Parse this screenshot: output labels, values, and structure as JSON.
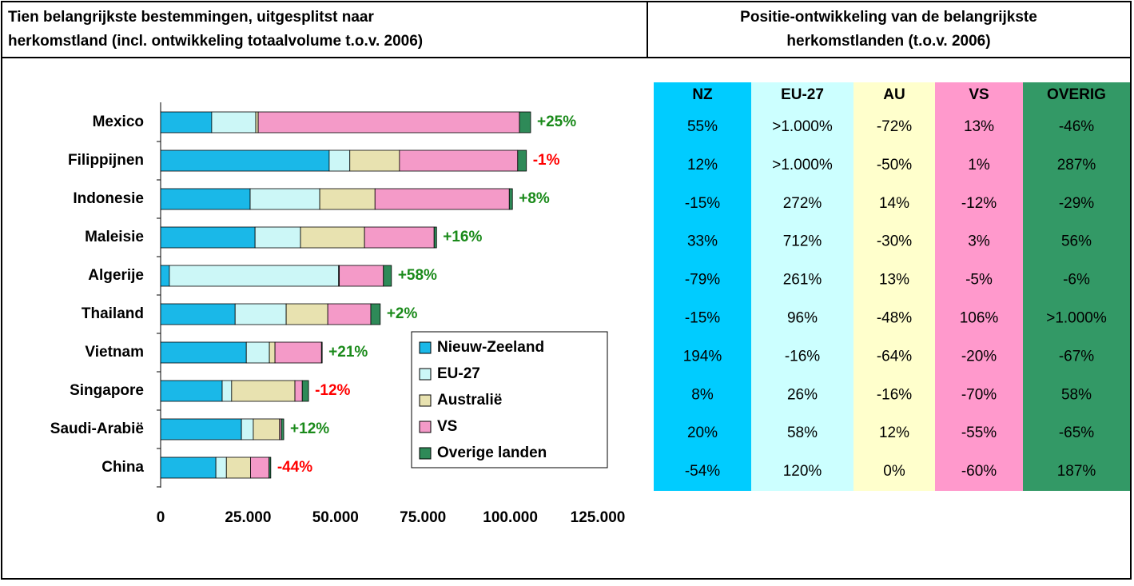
{
  "left_title_lines": [
    "Tien belangrijkste bestemmingen, uitgesplitst naar",
    "herkomstland (incl. ontwikkeling totaalvolume t.o.v. 2006)"
  ],
  "right_title_lines": [
    "Positie-ontwikkeling van de belangrijkste",
    "herkomstlanden (t.o.v. 2006)"
  ],
  "chart_data": {
    "type": "bar",
    "orientation": "horizontal",
    "stacked": true,
    "categories": [
      "Mexico",
      "Filippijnen",
      "Indonesie",
      "Maleisie",
      "Algerije",
      "Thailand",
      "Vietnam",
      "Singapore",
      "Saudi-Arabië",
      "China"
    ],
    "series": [
      {
        "name": "Nieuw-Zeeland",
        "color": "#1ab8e8",
        "values": [
          14600,
          48200,
          25600,
          27000,
          2500,
          21300,
          24500,
          17600,
          23100,
          15800
        ]
      },
      {
        "name": "EU-27",
        "color": "#ccf7f7",
        "values": [
          12600,
          5900,
          19900,
          13000,
          48400,
          14600,
          6600,
          2700,
          3400,
          3000
        ]
      },
      {
        "name": "Australië",
        "color": "#e8e2b0",
        "values": [
          700,
          14200,
          15800,
          18300,
          200,
          11900,
          1600,
          18100,
          7500,
          6900
        ]
      },
      {
        "name": "VS",
        "color": "#f49ac8",
        "values": [
          74700,
          33800,
          38400,
          19900,
          12600,
          12300,
          13300,
          2100,
          500,
          5300
        ]
      },
      {
        "name": "Overige landen",
        "color": "#2e8a58",
        "values": [
          3200,
          2500,
          900,
          700,
          2300,
          2700,
          200,
          1800,
          700,
          500
        ]
      }
    ],
    "annotations": [
      "+25%",
      "-1%",
      "+8%",
      "+16%",
      "+58%",
      "+2%",
      "+21%",
      "-12%",
      "+12%",
      "-44%"
    ],
    "xlim": [
      0,
      125000
    ],
    "xticks": [
      0,
      {
        "value": 25000,
        "label": "25.000"
      },
      {
        "value": 50000,
        "label": "50.000"
      },
      {
        "value": 75000,
        "label": "75.000"
      },
      {
        "value": 100000,
        "label": "100.000"
      },
      {
        "value": 125000,
        "label": "125.000"
      }
    ],
    "legend": "lower-right"
  },
  "table": {
    "header": [
      "NZ",
      "EU-27",
      "AU",
      "VS",
      "OVERIG"
    ],
    "column_colors": [
      "#00ccff",
      "#ccffff",
      "#ffffcc",
      "#ff99cc",
      "#339966"
    ],
    "rows": [
      [
        "55%",
        ">1.000%",
        "-72%",
        "13%",
        "-46%"
      ],
      [
        "12%",
        ">1.000%",
        "-50%",
        "1%",
        "287%"
      ],
      [
        "-15%",
        "272%",
        "14%",
        "-12%",
        "-29%"
      ],
      [
        "33%",
        "712%",
        "-30%",
        "3%",
        "56%"
      ],
      [
        "-79%",
        "261%",
        "13%",
        "-5%",
        "-6%"
      ],
      [
        "-15%",
        "96%",
        "-48%",
        "106%",
        ">1.000%"
      ],
      [
        "194%",
        "-16%",
        "-64%",
        "-20%",
        "-67%"
      ],
      [
        "8%",
        "26%",
        "-16%",
        "-70%",
        "58%"
      ],
      [
        "20%",
        "58%",
        "12%",
        "-55%",
        "-65%"
      ],
      [
        "-54%",
        "120%",
        "0%",
        "-60%",
        "187%"
      ]
    ]
  }
}
